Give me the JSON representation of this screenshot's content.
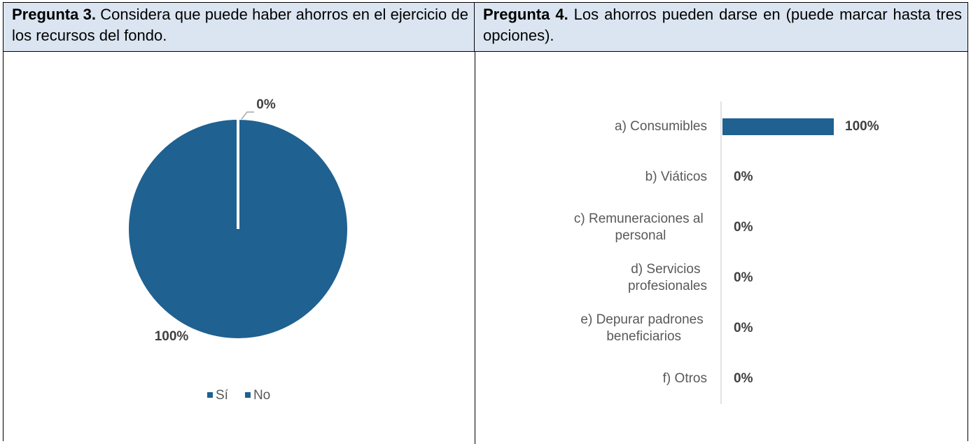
{
  "table": {
    "headers": [
      {
        "label": "Pregunta 3.",
        "text": " Considera que puede haber ahorros en el ejercicio de los recursos del fondo."
      },
      {
        "label": "Pregunta 4.",
        "text": " Los ahorros pueden darse en (puede marcar hasta tres opciones)."
      }
    ]
  },
  "chart_data": [
    {
      "type": "pie",
      "categories": [
        "Sí",
        "No"
      ],
      "values": [
        100,
        0
      ],
      "value_labels": [
        "100%",
        "0%"
      ],
      "colors": [
        "#1f6191",
        "#1f6191"
      ],
      "legend": "bottom"
    },
    {
      "type": "barh",
      "categories": [
        "a) Consumibles",
        "b) Viáticos",
        "c) Remuneraciones al personal",
        "d) Servicios profesionales",
        "e) Depurar padrones beneficiarios",
        "f) Otros"
      ],
      "values": [
        100,
        0,
        0,
        0,
        0,
        0
      ],
      "value_labels": [
        "100%",
        "0%",
        "0%",
        "0%",
        "0%",
        "0%"
      ],
      "color": "#1f6191",
      "xlim": [
        0,
        100
      ]
    }
  ]
}
